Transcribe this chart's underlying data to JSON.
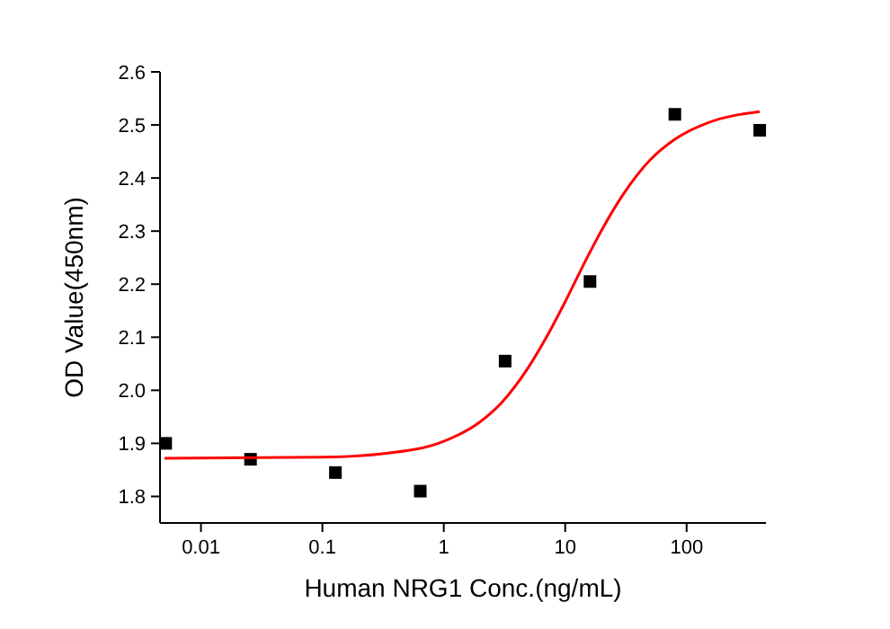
{
  "chart_data": {
    "type": "scatter",
    "xlabel": "Human NRG1 Conc.(ng/mL)",
    "ylabel": "OD Value(450nm)",
    "log": "x",
    "xlim": [
      0.0046,
      450
    ],
    "xticks": [
      {
        "value": 0.01,
        "label": "0.01"
      },
      {
        "value": 0.1,
        "label": "0.1"
      },
      1,
      10,
      100
    ],
    "ylim": [
      1.75,
      2.6
    ],
    "yticks": [
      {
        "value": 1.8,
        "label": "1.8"
      },
      {
        "value": 1.9,
        "label": "1.9"
      },
      {
        "value": 2.0,
        "label": "2.0"
      },
      {
        "value": 2.1,
        "label": "2.1"
      },
      {
        "value": 2.2,
        "label": "2.2"
      },
      {
        "value": 2.3,
        "label": "2.3"
      },
      {
        "value": 2.4,
        "label": "2.4"
      },
      {
        "value": 2.5,
        "label": "2.5"
      },
      {
        "value": 2.6,
        "label": "2.6"
      }
    ],
    "grid": false,
    "series": [
      {
        "color": "#000000",
        "marker": "square",
        "x": [
          0.00512,
          0.0256,
          0.128,
          0.64,
          3.2,
          16,
          80,
          400
        ],
        "values": [
          1.9,
          1.87,
          1.845,
          1.81,
          2.055,
          2.205,
          2.52,
          2.49
        ]
      },
      {
        "type": "line",
        "color": "#ff0000",
        "marker": "none",
        "line_style": "solid",
        "x": [
          0.005,
          0.1,
          0.3,
          1,
          2,
          3,
          5,
          7,
          10,
          15,
          20,
          30,
          50,
          80,
          150,
          400
        ],
        "values": [
          1.872,
          1.874,
          1.88,
          1.904,
          1.941,
          1.977,
          2.044,
          2.1,
          2.167,
          2.248,
          2.302,
          2.369,
          2.434,
          2.473,
          2.504,
          2.525
        ]
      }
    ]
  }
}
